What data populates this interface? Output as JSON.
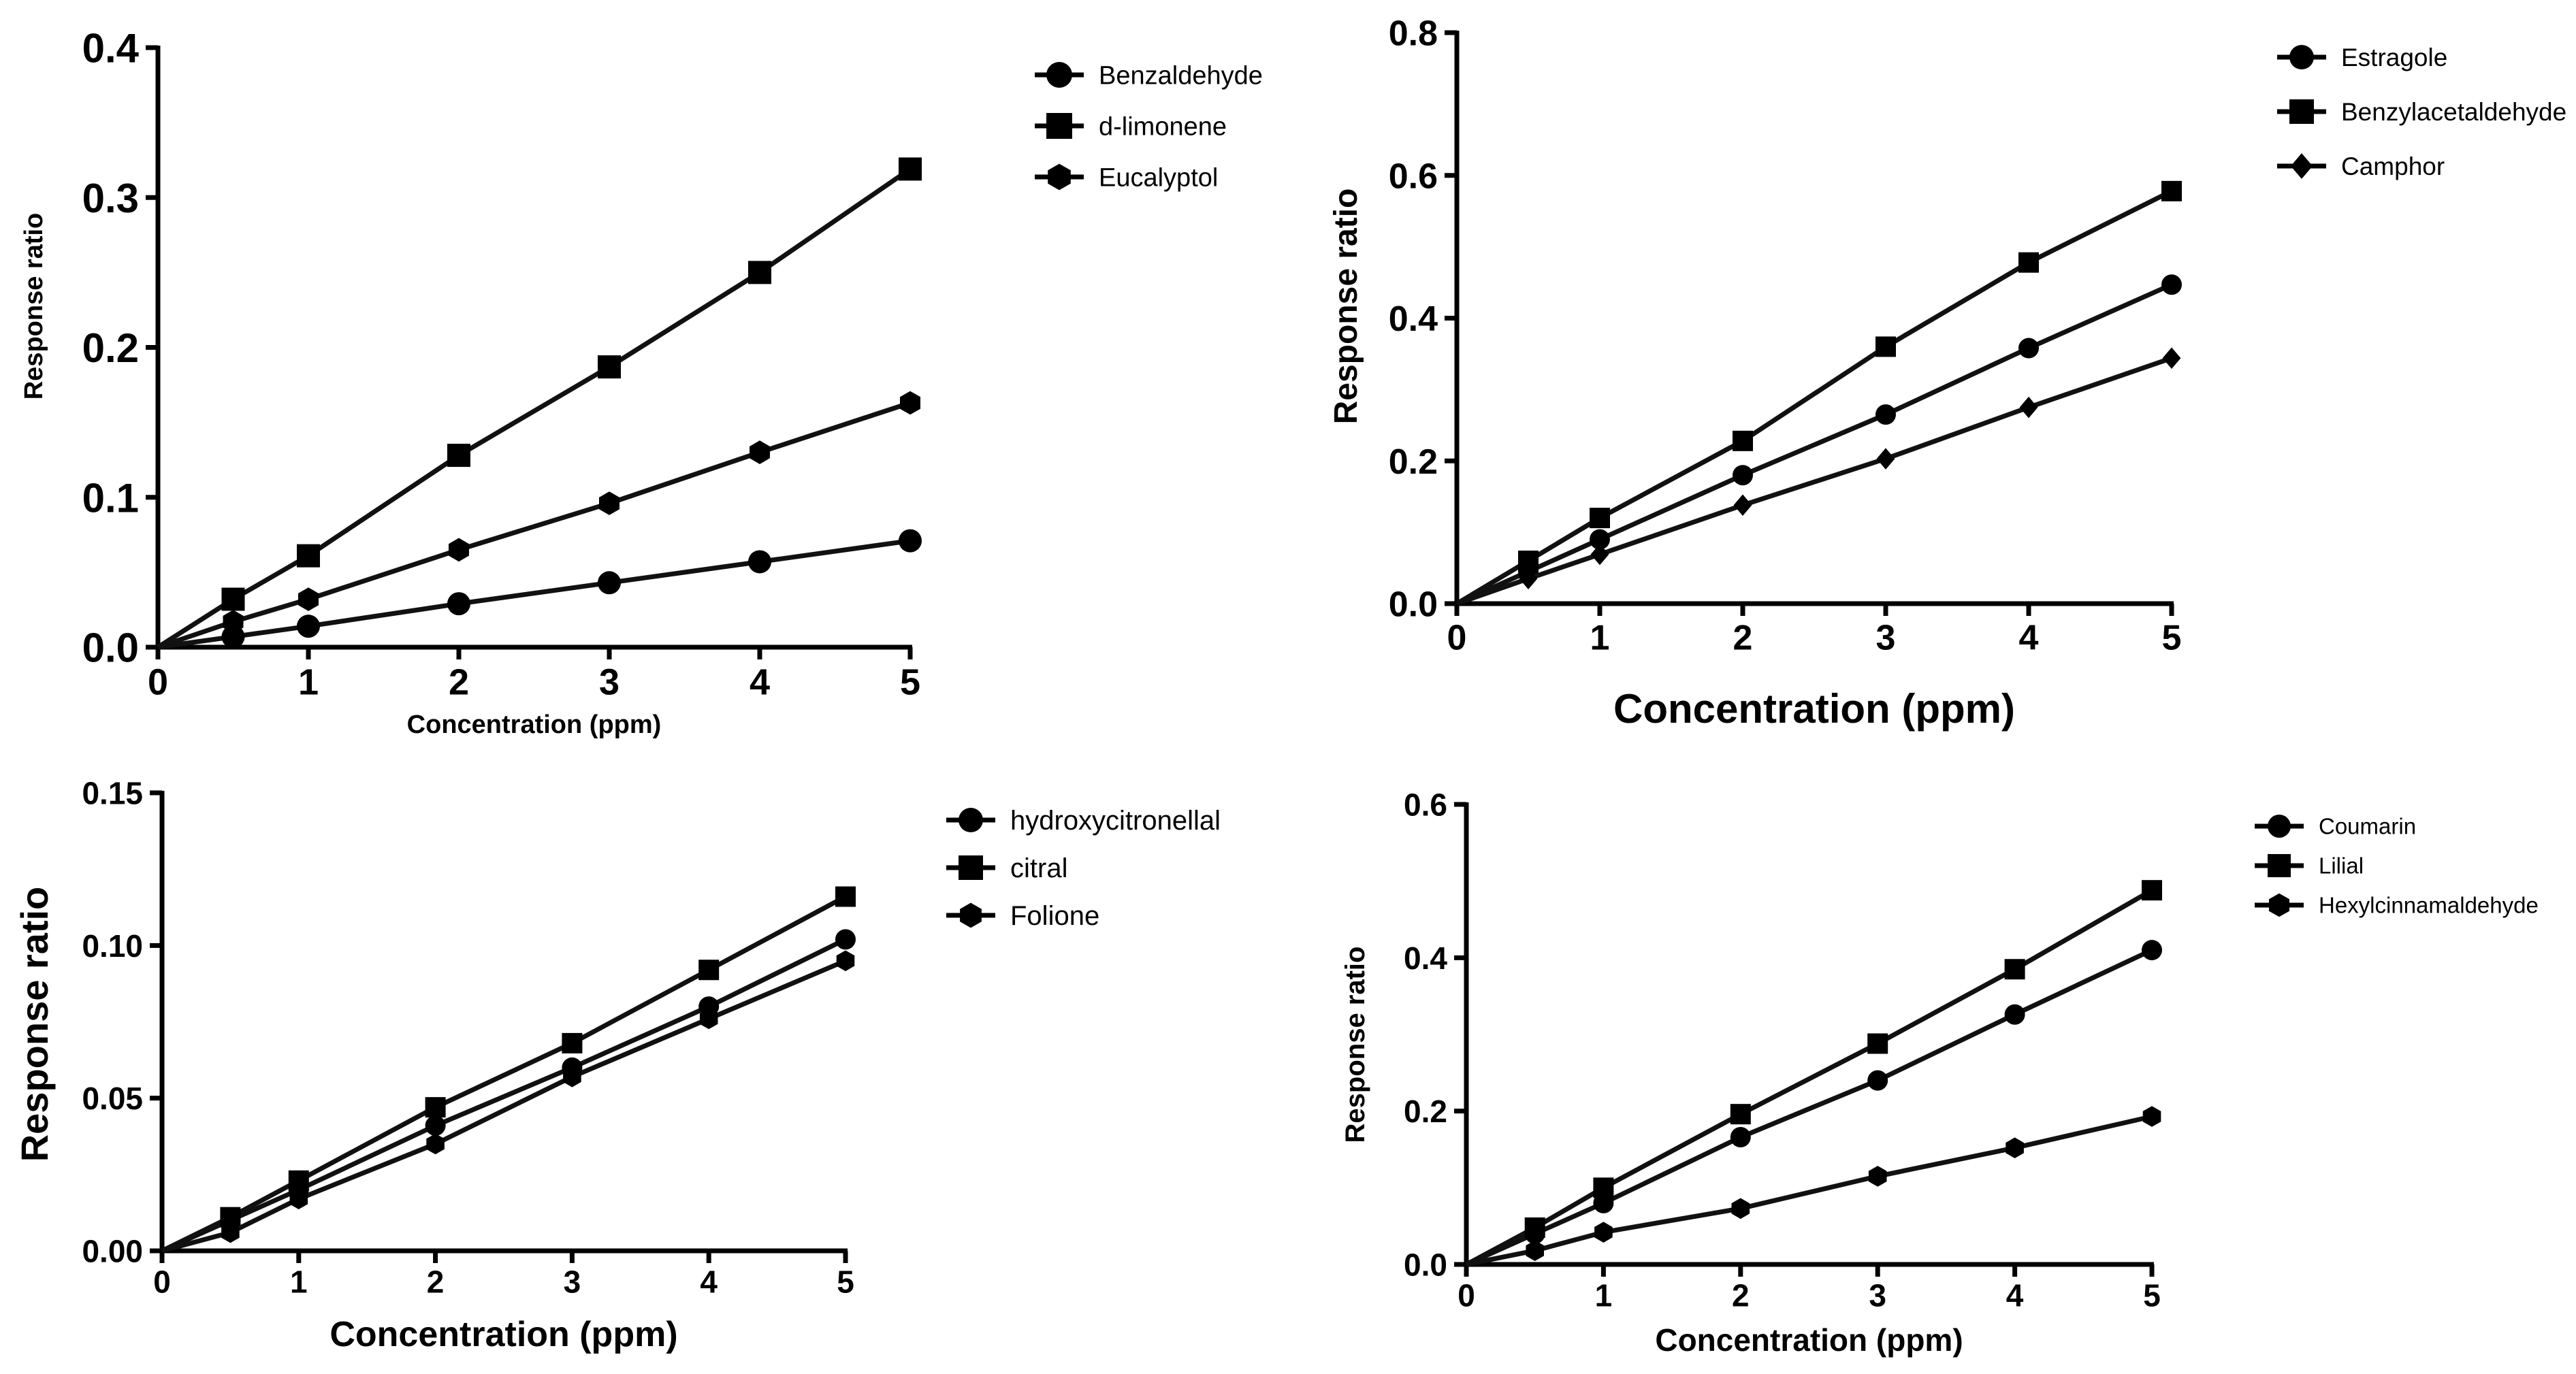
{
  "chart_data": [
    {
      "type": "line",
      "xlabel": "Concentration (ppm)",
      "ylabel": "Response ratio",
      "xlim": [
        0,
        5
      ],
      "ylim": [
        0,
        0.4
      ],
      "xticks": [
        "0",
        "1",
        "2",
        "3",
        "4",
        "5"
      ],
      "yticks": [
        "0.0",
        "0.1",
        "0.2",
        "0.3",
        "0.4"
      ],
      "legend_position": "top-right",
      "grid": false,
      "x": [
        0.5,
        1,
        2,
        3,
        4,
        5
      ],
      "series": [
        {
          "name": "Benzaldehyde",
          "marker": "circle",
          "values": [
            0.007,
            0.014,
            0.029,
            0.043,
            0.057,
            0.071
          ]
        },
        {
          "name": "d-limonene",
          "marker": "square",
          "values": [
            0.032,
            0.061,
            0.128,
            0.187,
            0.25,
            0.319
          ]
        },
        {
          "name": "Eucalyptol",
          "marker": "hexagon",
          "values": [
            0.017,
            0.032,
            0.065,
            0.096,
            0.13,
            0.163
          ]
        }
      ]
    },
    {
      "type": "line",
      "xlabel": "Concentration (ppm)",
      "ylabel": "Response ratio",
      "xlim": [
        0,
        5
      ],
      "ylim": [
        0,
        0.8
      ],
      "xticks": [
        "0",
        "1",
        "2",
        "3",
        "4",
        "5"
      ],
      "yticks": [
        "0.0",
        "0.2",
        "0.4",
        "0.6",
        "0.8"
      ],
      "legend_position": "top-right",
      "grid": false,
      "x": [
        0.5,
        1,
        2,
        3,
        4,
        5
      ],
      "series": [
        {
          "name": "Estragole",
          "marker": "circle",
          "values": [
            0.045,
            0.09,
            0.18,
            0.265,
            0.358,
            0.447
          ]
        },
        {
          "name": "Benzylacetaldehyde",
          "marker": "square",
          "values": [
            0.06,
            0.12,
            0.228,
            0.36,
            0.478,
            0.578
          ]
        },
        {
          "name": "Camphor",
          "marker": "diamond",
          "values": [
            0.035,
            0.069,
            0.138,
            0.203,
            0.275,
            0.344
          ]
        }
      ]
    },
    {
      "type": "line",
      "xlabel": "Concentration (ppm)",
      "ylabel": "Response ratio",
      "xlim": [
        0,
        5
      ],
      "ylim": [
        0,
        0.15
      ],
      "xticks": [
        "0",
        "1",
        "2",
        "3",
        "4",
        "5"
      ],
      "yticks": [
        "0.00",
        "0.05",
        "0.10",
        "0.15"
      ],
      "legend_position": "top-right",
      "grid": false,
      "x": [
        0.5,
        1,
        2,
        3,
        4,
        5
      ],
      "series": [
        {
          "name": "hydroxycitronellal",
          "marker": "circle",
          "values": [
            0.01,
            0.02,
            0.041,
            0.06,
            0.08,
            0.102
          ]
        },
        {
          "name": "citral",
          "marker": "square",
          "values": [
            0.011,
            0.023,
            0.047,
            0.068,
            0.092,
            0.116
          ]
        },
        {
          "name": "Folione",
          "marker": "hexagon",
          "values": [
            0.006,
            0.017,
            0.035,
            0.057,
            0.076,
            0.095
          ]
        }
      ]
    },
    {
      "type": "line",
      "xlabel": "Concentration (ppm)",
      "ylabel": "Response ratio",
      "xlim": [
        0,
        5
      ],
      "ylim": [
        0,
        0.6
      ],
      "xticks": [
        "0",
        "1",
        "2",
        "3",
        "4",
        "5"
      ],
      "yticks": [
        "0.0",
        "0.2",
        "0.4",
        "0.6"
      ],
      "legend_position": "top-right",
      "grid": false,
      "x": [
        0.5,
        1,
        2,
        3,
        4,
        5
      ],
      "series": [
        {
          "name": "Coumarin",
          "marker": "circle",
          "values": [
            0.04,
            0.08,
            0.166,
            0.24,
            0.326,
            0.41
          ]
        },
        {
          "name": "Lilial",
          "marker": "square",
          "values": [
            0.048,
            0.1,
            0.196,
            0.288,
            0.385,
            0.488
          ]
        },
        {
          "name": "Hexylcinnamaldehyde",
          "marker": "hexagon",
          "values": [
            0.018,
            0.042,
            0.073,
            0.115,
            0.152,
            0.193
          ]
        }
      ]
    }
  ]
}
